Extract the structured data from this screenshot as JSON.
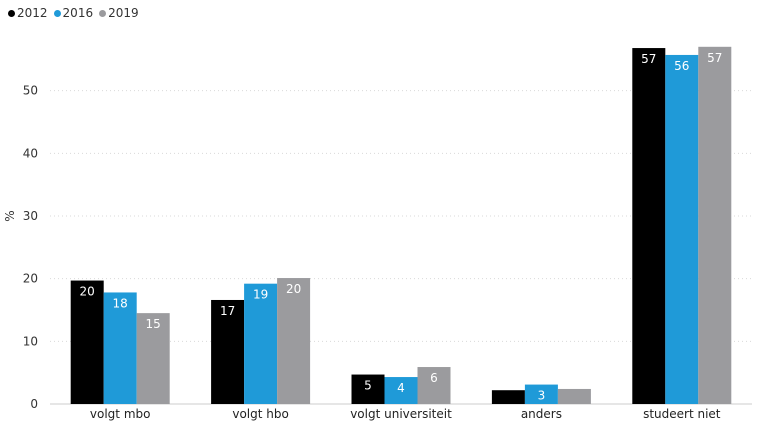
{
  "chart_data": {
    "type": "bar",
    "categories": [
      "volgt mbo",
      "volgt hbo",
      "volgt universiteit",
      "anders",
      "studeert niet"
    ],
    "series": [
      {
        "name": "2012",
        "color": "#000000",
        "values": [
          19.7,
          16.6,
          4.7,
          2.2,
          56.8
        ],
        "labels": [
          "20",
          "17",
          "5",
          "",
          "57"
        ]
      },
      {
        "name": "2016",
        "color": "#1f9ad8",
        "values": [
          17.8,
          19.2,
          4.3,
          3.1,
          55.7
        ],
        "labels": [
          "18",
          "19",
          "4",
          "3",
          "56"
        ]
      },
      {
        "name": "2019",
        "color": "#9b9b9e",
        "values": [
          14.5,
          20.1,
          5.9,
          2.4,
          57.0
        ],
        "labels": [
          "15",
          "20",
          "6",
          "",
          "57"
        ]
      }
    ],
    "ylabel": "%",
    "xlabel": "",
    "ylim": [
      0,
      60
    ],
    "yticks": [
      0,
      10,
      20,
      30,
      40,
      50
    ],
    "grid": true,
    "legend_position": "top-left"
  }
}
